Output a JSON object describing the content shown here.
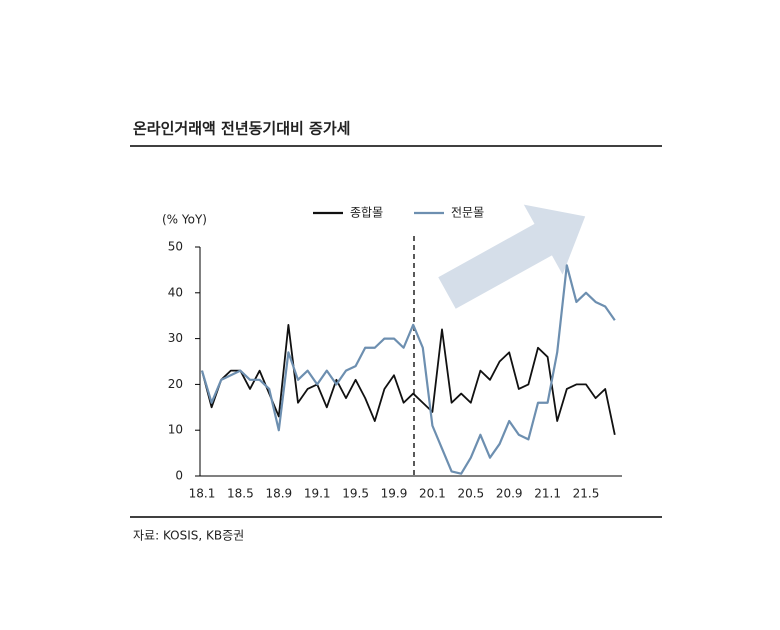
{
  "title": "온라인거래액 전년동기대비 증가세",
  "source": "자료: KOSIS, KB증권",
  "chart_data": {
    "type": "line",
    "y_label": "(% YoY)",
    "categories": [
      "18.1",
      null,
      null,
      null,
      "18.5",
      null,
      null,
      null,
      "18.9",
      null,
      null,
      null,
      "19.1",
      null,
      null,
      null,
      "19.5",
      null,
      null,
      null,
      "19.9",
      null,
      null,
      null,
      "20.1",
      null,
      null,
      null,
      "20.5",
      null,
      null,
      null,
      "20.9",
      null,
      null,
      null,
      "21.1",
      null,
      null,
      null,
      "21.5",
      null,
      null,
      null
    ],
    "series": [
      {
        "name": "종합몰",
        "color": "#111111",
        "values": [
          23,
          15,
          21,
          23,
          23,
          19,
          23,
          18,
          13,
          33,
          16,
          19,
          20,
          15,
          21,
          17,
          21,
          17,
          12,
          19,
          22,
          16,
          18,
          16,
          14,
          32,
          16,
          18,
          16,
          23,
          21,
          25,
          27,
          19,
          20,
          28,
          26,
          12,
          19,
          20,
          20,
          17,
          19,
          9
        ]
      },
      {
        "name": "전문몰",
        "color": "#6d8fb0",
        "values": [
          23,
          16,
          21,
          22,
          23,
          21,
          21,
          19,
          10,
          27,
          21,
          23,
          20,
          23,
          20,
          23,
          24,
          28,
          28,
          30,
          30,
          28,
          33,
          28,
          11,
          6,
          1,
          0.5,
          4,
          9,
          4,
          7,
          12,
          9,
          8,
          16,
          16,
          27,
          46,
          38,
          40,
          38,
          37,
          34
        ]
      }
    ],
    "ylim": [
      0,
      50
    ],
    "yticks": [
      0,
      10,
      20,
      30,
      40,
      50
    ],
    "grid": false
  }
}
